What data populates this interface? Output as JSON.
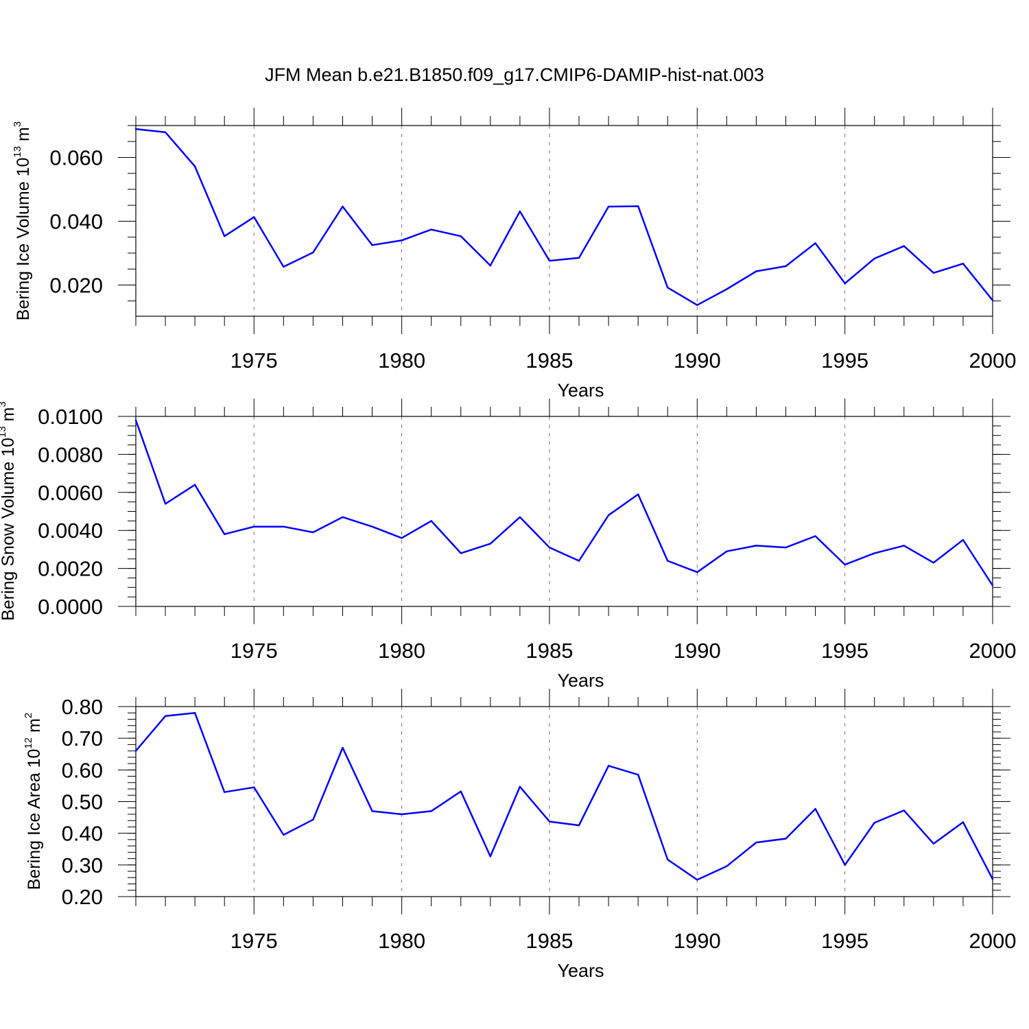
{
  "figure_title": "JFM Mean b.e21.B1850.f09_g17.CMIP6-DAMIP-hist-nat.003",
  "colors": {
    "series": "#0000ff",
    "axis": "#000000",
    "grid": "#777777"
  },
  "chart_data": [
    {
      "type": "line",
      "title": "JFM Mean b.e21.B1850.f09_g17.CMIP6-DAMIP-hist-nat.003",
      "xlabel": "Years",
      "ylabel": {
        "text": "Bering Ice Volume 10",
        "exp": "13",
        "unit": " m",
        "unit_exp": "3"
      },
      "xlim": [
        1971,
        2000
      ],
      "ylim": [
        0.0102,
        0.07
      ],
      "x_ticks": [
        1975,
        1980,
        1985,
        1990,
        1995,
        2000
      ],
      "x_tick_labels": [
        "1975",
        "1980",
        "1985",
        "1990",
        "1995",
        "2000"
      ],
      "y_ticks": [
        0.02,
        0.04,
        0.06
      ],
      "y_tick_labels": [
        "0.020",
        "0.040",
        "0.060"
      ],
      "y_minor_step": 0.005,
      "grid": "vertical dashed at major x ticks",
      "series": [
        {
          "name": "Bering Ice Volume",
          "x": [
            1971,
            1972,
            1973,
            1974,
            1975,
            1976,
            1977,
            1978,
            1979,
            1980,
            1981,
            1982,
            1983,
            1984,
            1985,
            1986,
            1987,
            1988,
            1989,
            1990,
            1991,
            1992,
            1993,
            1994,
            1995,
            1996,
            1997,
            1998,
            1999,
            2000
          ],
          "values": [
            0.0689,
            0.0679,
            0.0572,
            0.0353,
            0.0413,
            0.0257,
            0.0302,
            0.0446,
            0.0325,
            0.034,
            0.0374,
            0.0353,
            0.0261,
            0.0431,
            0.0276,
            0.0285,
            0.0446,
            0.0447,
            0.0192,
            0.0137,
            0.0187,
            0.0243,
            0.0259,
            0.0331,
            0.0205,
            0.0283,
            0.0322,
            0.0238,
            0.0267,
            0.0152
          ]
        }
      ]
    },
    {
      "type": "line",
      "title": "",
      "xlabel": "Years",
      "ylabel": {
        "text": "Bering Snow Volume 10",
        "exp": "13",
        "unit": " m",
        "unit_exp": "3"
      },
      "xlim": [
        1971,
        2000
      ],
      "ylim": [
        0.0,
        0.01
      ],
      "x_ticks": [
        1975,
        1980,
        1985,
        1990,
        1995,
        2000
      ],
      "x_tick_labels": [
        "1975",
        "1980",
        "1985",
        "1990",
        "1995",
        "2000"
      ],
      "y_ticks": [
        0.0,
        0.002,
        0.004,
        0.006,
        0.008,
        0.01
      ],
      "y_tick_labels": [
        "0.0000",
        "0.0020",
        "0.0040",
        "0.0060",
        "0.0080",
        "0.0100"
      ],
      "y_minor_step": 0.0005,
      "grid": "vertical dashed at major x ticks",
      "series": [
        {
          "name": "Bering Snow Volume",
          "x": [
            1971,
            1972,
            1973,
            1974,
            1975,
            1976,
            1977,
            1978,
            1979,
            1980,
            1981,
            1982,
            1983,
            1984,
            1985,
            1986,
            1987,
            1988,
            1989,
            1990,
            1991,
            1992,
            1993,
            1994,
            1995,
            1996,
            1997,
            1998,
            1999,
            2000
          ],
          "values": [
            0.0098,
            0.0054,
            0.0064,
            0.0038,
            0.0042,
            0.0042,
            0.0039,
            0.0047,
            0.0042,
            0.0036,
            0.0045,
            0.0028,
            0.0033,
            0.0047,
            0.0031,
            0.0024,
            0.0048,
            0.0059,
            0.0024,
            0.0018,
            0.0029,
            0.0032,
            0.0031,
            0.0037,
            0.0022,
            0.0028,
            0.0032,
            0.0023,
            0.0035,
            0.0011
          ]
        }
      ]
    },
    {
      "type": "line",
      "title": "",
      "xlabel": "Years",
      "ylabel": {
        "text": "Bering Ice Area 10",
        "exp": "12",
        "unit": " m",
        "unit_exp": "2"
      },
      "xlim": [
        1971,
        2000
      ],
      "ylim": [
        0.2,
        0.8
      ],
      "x_ticks": [
        1975,
        1980,
        1985,
        1990,
        1995,
        2000
      ],
      "x_tick_labels": [
        "1975",
        "1980",
        "1985",
        "1990",
        "1995",
        "2000"
      ],
      "y_ticks": [
        0.2,
        0.3,
        0.4,
        0.5,
        0.6,
        0.7,
        0.8
      ],
      "y_tick_labels": [
        "0.20",
        "0.30",
        "0.40",
        "0.50",
        "0.60",
        "0.70",
        "0.80"
      ],
      "y_minor_step": 0.02,
      "grid": "vertical dashed at major x ticks",
      "series": [
        {
          "name": "Bering Ice Area",
          "x": [
            1971,
            1972,
            1973,
            1974,
            1975,
            1976,
            1977,
            1978,
            1979,
            1980,
            1981,
            1982,
            1983,
            1984,
            1985,
            1986,
            1987,
            1988,
            1989,
            1990,
            1991,
            1992,
            1993,
            1994,
            1995,
            1996,
            1997,
            1998,
            1999,
            2000
          ],
          "values": [
            0.66,
            0.77,
            0.78,
            0.53,
            0.545,
            0.395,
            0.443,
            0.67,
            0.47,
            0.46,
            0.47,
            0.532,
            0.327,
            0.547,
            0.437,
            0.425,
            0.613,
            0.585,
            0.317,
            0.253,
            0.296,
            0.371,
            0.383,
            0.477,
            0.3,
            0.433,
            0.472,
            0.367,
            0.435,
            0.255
          ]
        }
      ]
    }
  ]
}
